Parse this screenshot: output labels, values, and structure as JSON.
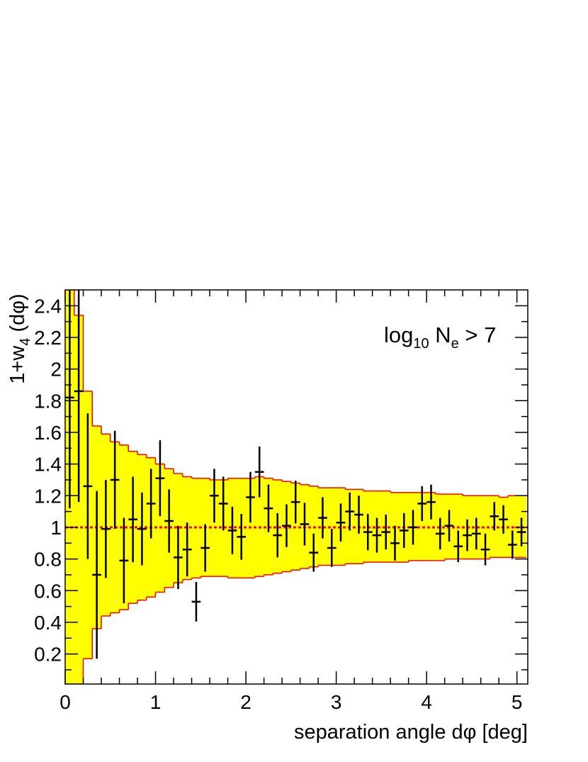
{
  "chart_data": {
    "type": "errorband",
    "x_label": "separation angle dφ [deg]",
    "y_label": [
      "1+w",
      "4",
      " (dφ)"
    ],
    "annotation": [
      "log",
      "10",
      " N",
      "e",
      " > 7"
    ],
    "xlim": [
      0,
      5.12
    ],
    "ylim": [
      0.01,
      2.5
    ],
    "xticks": [
      0,
      1,
      2,
      3,
      4,
      5
    ],
    "yticks": [
      0.2,
      0.4,
      0.6,
      0.8,
      1,
      1.2,
      1.4,
      1.6,
      1.8,
      2,
      2.2,
      2.4
    ],
    "band": {
      "color": "#ffff00",
      "edge_color": "#ff0000",
      "bins": [
        0,
        0.1,
        0.2,
        0.3,
        0.4,
        0.5,
        0.6,
        0.7,
        0.8,
        0.9,
        1,
        1.1,
        1.2,
        1.3,
        1.4,
        1.5,
        1.6,
        1.7,
        1.8,
        1.9,
        2,
        2.1,
        2.2,
        2.3,
        2.4,
        2.5,
        2.6,
        2.7,
        2.8,
        2.9,
        3,
        3.1,
        3.2,
        3.3,
        3.4,
        3.5,
        3.6,
        3.7,
        3.8,
        3.9,
        4,
        4.1,
        4.2,
        4.3,
        4.4,
        4.5,
        4.6,
        4.7,
        4.8,
        4.9,
        5,
        5.1
      ],
      "upper": [
        2.5,
        2.34,
        1.86,
        1.64,
        1.59,
        1.54,
        1.52,
        1.48,
        1.46,
        1.44,
        1.4,
        1.37,
        1.34,
        1.32,
        1.31,
        1.31,
        1.3,
        1.3,
        1.31,
        1.31,
        1.31,
        1.32,
        1.31,
        1.3,
        1.29,
        1.28,
        1.27,
        1.26,
        1.25,
        1.25,
        1.25,
        1.24,
        1.24,
        1.23,
        1.23,
        1.23,
        1.22,
        1.22,
        1.22,
        1.22,
        1.22,
        1.21,
        1.21,
        1.21,
        1.2,
        1.2,
        1.2,
        1.2,
        1.19,
        1.2,
        1.2
      ],
      "lower": [
        0.01,
        0.01,
        0.17,
        0.36,
        0.44,
        0.46,
        0.48,
        0.52,
        0.54,
        0.56,
        0.59,
        0.62,
        0.65,
        0.67,
        0.68,
        0.69,
        0.69,
        0.69,
        0.68,
        0.68,
        0.68,
        0.69,
        0.7,
        0.71,
        0.72,
        0.73,
        0.74,
        0.75,
        0.76,
        0.76,
        0.76,
        0.77,
        0.77,
        0.78,
        0.78,
        0.78,
        0.78,
        0.78,
        0.79,
        0.79,
        0.79,
        0.79,
        0.8,
        0.8,
        0.8,
        0.8,
        0.8,
        0.81,
        0.81,
        0.81,
        0.81
      ]
    },
    "points": {
      "color": "#000000",
      "x": [
        0.05,
        0.15,
        0.25,
        0.35,
        0.45,
        0.55,
        0.65,
        0.75,
        0.85,
        0.95,
        1.05,
        1.15,
        1.25,
        1.35,
        1.45,
        1.55,
        1.65,
        1.75,
        1.85,
        1.95,
        2.05,
        2.15,
        2.25,
        2.35,
        2.45,
        2.55,
        2.65,
        2.75,
        2.85,
        2.95,
        3.05,
        3.15,
        3.25,
        3.35,
        3.45,
        3.55,
        3.65,
        3.75,
        3.85,
        3.95,
        4.05,
        4.15,
        4.25,
        4.35,
        4.45,
        4.55,
        4.65,
        4.75,
        4.85,
        4.95,
        5.05
      ],
      "values": [
        1.82,
        1.86,
        1.26,
        0.7,
        0.99,
        1.3,
        0.79,
        1.05,
        0.99,
        1.15,
        1.31,
        1.04,
        0.81,
        0.86,
        0.53,
        0.87,
        1.2,
        1.15,
        0.98,
        0.94,
        1.19,
        1.35,
        1.12,
        0.95,
        1.01,
        1.16,
        1.02,
        0.84,
        1.06,
        0.87,
        1.03,
        1.1,
        1.08,
        0.97,
        0.95,
        0.97,
        0.9,
        0.98,
        1.0,
        1.15,
        1.16,
        0.96,
        1.01,
        0.88,
        0.95,
        0.96,
        0.86,
        1.07,
        1.05,
        0.89,
        0.97
      ],
      "errors": [
        0.7,
        0.7,
        0.46,
        0.53,
        0.31,
        0.31,
        0.27,
        0.27,
        0.23,
        0.22,
        0.24,
        0.2,
        0.2,
        0.17,
        0.125,
        0.15,
        0.17,
        0.17,
        0.15,
        0.145,
        0.16,
        0.16,
        0.15,
        0.14,
        0.135,
        0.135,
        0.135,
        0.12,
        0.13,
        0.12,
        0.12,
        0.12,
        0.12,
        0.115,
        0.11,
        0.11,
        0.11,
        0.11,
        0.11,
        0.11,
        0.11,
        0.1,
        0.1,
        0.1,
        0.1,
        0.1,
        0.1,
        0.09,
        0.09,
        0.09,
        0.09
      ]
    },
    "reference_line": {
      "value": 1,
      "color": "#ff0000"
    }
  }
}
